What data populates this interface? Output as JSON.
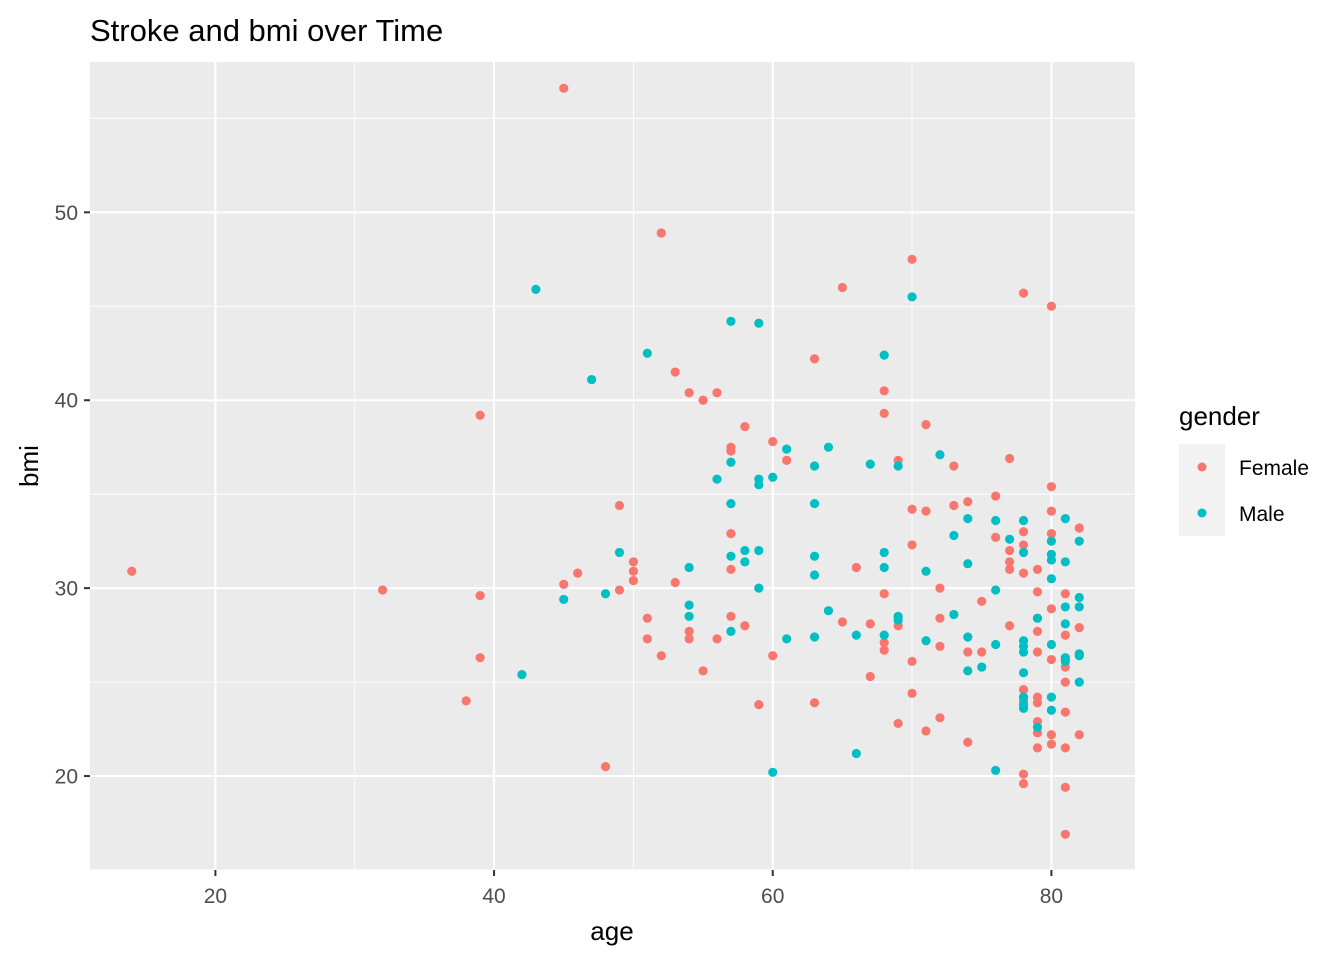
{
  "chart_data": {
    "type": "scatter",
    "title": "Stroke and bmi over Time",
    "xlabel": "age",
    "ylabel": "bmi",
    "xlim": [
      11,
      86
    ],
    "ylim": [
      15,
      58
    ],
    "x_ticks": [
      20,
      40,
      60,
      80
    ],
    "y_ticks": [
      20,
      30,
      40,
      50
    ],
    "grid": true,
    "legend": {
      "title": "gender",
      "placement": "right"
    },
    "series": [
      {
        "name": "Female",
        "color": "#F8766D",
        "points": [
          [
            14,
            30.9
          ],
          [
            32,
            29.9
          ],
          [
            38,
            24.0
          ],
          [
            39,
            39.2
          ],
          [
            39,
            29.6
          ],
          [
            39,
            26.3
          ],
          [
            45,
            56.6
          ],
          [
            45,
            30.2
          ],
          [
            46,
            30.8
          ],
          [
            48,
            20.5
          ],
          [
            49,
            34.4
          ],
          [
            49,
            29.9
          ],
          [
            50,
            31.4
          ],
          [
            50,
            30.9
          ],
          [
            50,
            30.4
          ],
          [
            51,
            28.4
          ],
          [
            51,
            27.3
          ],
          [
            52,
            48.9
          ],
          [
            52,
            26.4
          ],
          [
            53,
            41.5
          ],
          [
            53,
            30.3
          ],
          [
            54,
            40.4
          ],
          [
            54,
            27.7
          ],
          [
            54,
            27.3
          ],
          [
            55,
            40.0
          ],
          [
            55,
            25.6
          ],
          [
            56,
            40.4
          ],
          [
            56,
            27.3
          ],
          [
            57,
            37.5
          ],
          [
            57,
            37.3
          ],
          [
            57,
            32.9
          ],
          [
            57,
            31.0
          ],
          [
            57,
            28.5
          ],
          [
            58,
            38.6
          ],
          [
            58,
            28.0
          ],
          [
            59,
            23.8
          ],
          [
            60,
            37.8
          ],
          [
            60,
            26.4
          ],
          [
            61,
            36.8
          ],
          [
            63,
            42.2
          ],
          [
            63,
            23.9
          ],
          [
            65,
            46.0
          ],
          [
            65,
            28.2
          ],
          [
            66,
            31.1
          ],
          [
            67,
            28.1
          ],
          [
            67,
            25.3
          ],
          [
            68,
            40.5
          ],
          [
            68,
            39.3
          ],
          [
            68,
            29.7
          ],
          [
            68,
            27.1
          ],
          [
            68,
            26.7
          ],
          [
            69,
            36.8
          ],
          [
            69,
            28.0
          ],
          [
            69,
            22.8
          ],
          [
            70,
            47.5
          ],
          [
            70,
            34.2
          ],
          [
            70,
            32.3
          ],
          [
            70,
            26.1
          ],
          [
            70,
            24.4
          ],
          [
            71,
            38.7
          ],
          [
            71,
            34.1
          ],
          [
            71,
            22.4
          ],
          [
            72,
            30.0
          ],
          [
            72,
            28.4
          ],
          [
            72,
            26.9
          ],
          [
            72,
            23.1
          ],
          [
            73,
            36.5
          ],
          [
            73,
            34.4
          ],
          [
            74,
            34.6
          ],
          [
            74,
            26.6
          ],
          [
            74,
            21.8
          ],
          [
            75,
            29.3
          ],
          [
            75,
            26.6
          ],
          [
            76,
            34.9
          ],
          [
            76,
            32.7
          ],
          [
            77,
            36.9
          ],
          [
            77,
            32.0
          ],
          [
            77,
            31.4
          ],
          [
            77,
            31.0
          ],
          [
            77,
            28.0
          ],
          [
            78,
            45.7
          ],
          [
            78,
            33.0
          ],
          [
            78,
            32.3
          ],
          [
            78,
            30.8
          ],
          [
            78,
            24.6
          ],
          [
            78,
            24.0
          ],
          [
            78,
            20.1
          ],
          [
            78,
            19.6
          ],
          [
            79,
            31.0
          ],
          [
            79,
            29.8
          ],
          [
            79,
            28.4
          ],
          [
            79,
            27.7
          ],
          [
            79,
            26.6
          ],
          [
            79,
            24.2
          ],
          [
            79,
            23.9
          ],
          [
            79,
            22.9
          ],
          [
            79,
            22.3
          ],
          [
            79,
            21.5
          ],
          [
            80,
            45.0
          ],
          [
            80,
            35.4
          ],
          [
            80,
            34.1
          ],
          [
            80,
            32.9
          ],
          [
            80,
            28.9
          ],
          [
            80,
            26.2
          ],
          [
            80,
            22.2
          ],
          [
            80,
            21.7
          ],
          [
            81,
            29.7
          ],
          [
            81,
            27.5
          ],
          [
            81,
            26.2
          ],
          [
            81,
            25.8
          ],
          [
            81,
            25.0
          ],
          [
            81,
            23.4
          ],
          [
            81,
            21.5
          ],
          [
            81,
            19.4
          ],
          [
            81,
            16.9
          ],
          [
            82,
            33.2
          ],
          [
            82,
            27.9
          ],
          [
            82,
            26.5
          ],
          [
            82,
            22.2
          ]
        ]
      },
      {
        "name": "Male",
        "color": "#00BFC4",
        "points": [
          [
            42,
            25.4
          ],
          [
            43,
            45.9
          ],
          [
            45,
            29.4
          ],
          [
            47,
            41.1
          ],
          [
            48,
            29.7
          ],
          [
            49,
            31.9
          ],
          [
            51,
            42.5
          ],
          [
            54,
            31.1
          ],
          [
            54,
            29.1
          ],
          [
            54,
            28.5
          ],
          [
            56,
            35.8
          ],
          [
            57,
            44.2
          ],
          [
            57,
            36.7
          ],
          [
            57,
            34.5
          ],
          [
            57,
            31.7
          ],
          [
            57,
            27.7
          ],
          [
            58,
            32.0
          ],
          [
            58,
            31.4
          ],
          [
            59,
            44.1
          ],
          [
            59,
            35.8
          ],
          [
            59,
            35.5
          ],
          [
            59,
            32.0
          ],
          [
            59,
            30.0
          ],
          [
            60,
            35.9
          ],
          [
            60,
            20.2
          ],
          [
            61,
            37.4
          ],
          [
            61,
            27.3
          ],
          [
            63,
            36.5
          ],
          [
            63,
            34.5
          ],
          [
            63,
            31.7
          ],
          [
            63,
            30.7
          ],
          [
            63,
            27.4
          ],
          [
            64,
            37.5
          ],
          [
            64,
            28.8
          ],
          [
            66,
            27.5
          ],
          [
            66,
            21.2
          ],
          [
            67,
            36.6
          ],
          [
            68,
            42.4
          ],
          [
            68,
            31.9
          ],
          [
            68,
            31.1
          ],
          [
            68,
            27.5
          ],
          [
            69,
            36.5
          ],
          [
            69,
            28.5
          ],
          [
            69,
            28.3
          ],
          [
            70,
            45.5
          ],
          [
            71,
            30.9
          ],
          [
            71,
            27.2
          ],
          [
            72,
            37.1
          ],
          [
            73,
            32.8
          ],
          [
            73,
            28.6
          ],
          [
            74,
            33.7
          ],
          [
            74,
            31.3
          ],
          [
            74,
            27.4
          ],
          [
            74,
            25.6
          ],
          [
            75,
            25.8
          ],
          [
            76,
            33.6
          ],
          [
            76,
            29.9
          ],
          [
            76,
            27.0
          ],
          [
            76,
            20.3
          ],
          [
            77,
            32.6
          ],
          [
            78,
            33.6
          ],
          [
            78,
            31.9
          ],
          [
            78,
            27.2
          ],
          [
            78,
            26.9
          ],
          [
            78,
            26.6
          ],
          [
            78,
            25.5
          ],
          [
            78,
            24.2
          ],
          [
            78,
            23.8
          ],
          [
            78,
            23.6
          ],
          [
            79,
            28.4
          ],
          [
            79,
            22.6
          ],
          [
            80,
            32.5
          ],
          [
            80,
            31.8
          ],
          [
            80,
            31.5
          ],
          [
            80,
            30.5
          ],
          [
            80,
            27.0
          ],
          [
            80,
            24.2
          ],
          [
            80,
            23.5
          ],
          [
            81,
            33.7
          ],
          [
            81,
            31.4
          ],
          [
            81,
            29.0
          ],
          [
            81,
            28.1
          ],
          [
            81,
            26.3
          ],
          [
            81,
            26.1
          ],
          [
            82,
            32.5
          ],
          [
            82,
            29.5
          ],
          [
            82,
            29.0
          ],
          [
            82,
            26.5
          ],
          [
            82,
            26.4
          ],
          [
            82,
            25.0
          ]
        ]
      }
    ]
  }
}
